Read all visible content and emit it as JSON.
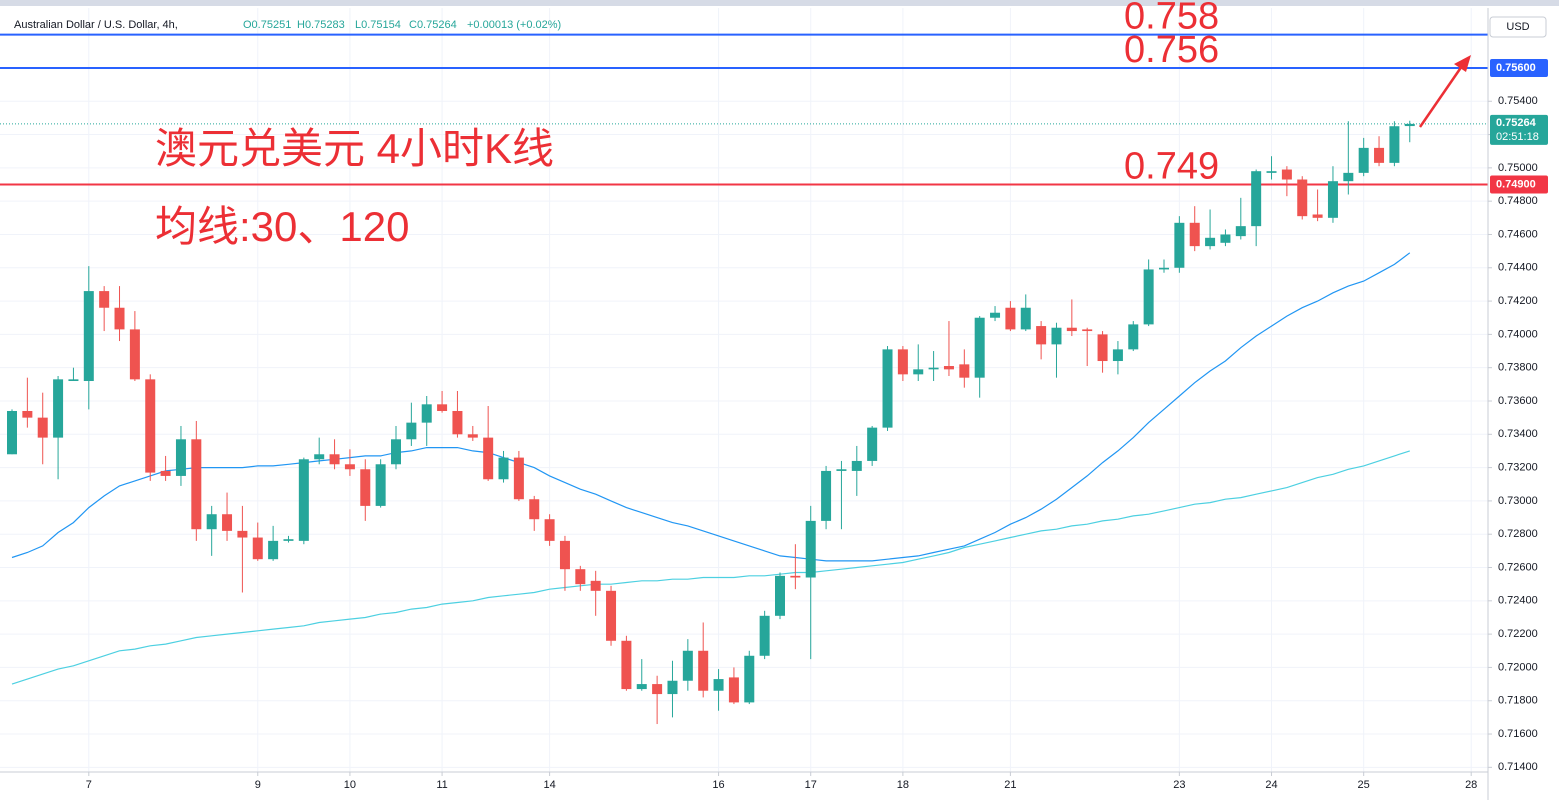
{
  "chart_data": {
    "type": "candlestick",
    "header": {
      "symbol": "Australian Dollar / U.S. Dollar, 4h,",
      "ohlc": [
        "O0.75251",
        "H0.75283",
        "L0.75154",
        "C0.75264",
        "+0.00013 (+0.02%)"
      ]
    },
    "title": "澳元兑美元 4小时K线",
    "subtitle": "均线:30、120",
    "currency": "USD",
    "categories": [
      null,
      null,
      null,
      null,
      null,
      "7",
      null,
      null,
      null,
      null,
      null,
      null,
      null,
      null,
      null,
      null,
      "9",
      null,
      null,
      null,
      null,
      null,
      "10",
      null,
      null,
      null,
      null,
      null,
      "11",
      null,
      null,
      null,
      null,
      null,
      null,
      "14",
      null,
      null,
      null,
      null,
      null,
      null,
      null,
      null,
      null,
      null,
      "16",
      null,
      null,
      null,
      null,
      null,
      "17",
      null,
      null,
      null,
      null,
      null,
      "18",
      null,
      null,
      null,
      null,
      null,
      null,
      "21",
      null,
      null,
      null,
      null,
      null,
      null,
      null,
      null,
      null,
      null,
      "23",
      null,
      null,
      null,
      null,
      null,
      "24",
      null,
      null,
      null,
      null,
      null,
      "25",
      null,
      null,
      null,
      null,
      null,
      null,
      "28"
    ],
    "open": [
      0.7328,
      0.7354,
      0.735,
      0.7338,
      0.7372,
      0.7372,
      0.7426,
      0.7416,
      0.7403,
      0.7373,
      0.7318,
      0.7315,
      0.7337,
      0.7283,
      0.7292,
      0.7282,
      0.7278,
      0.7265,
      0.7276,
      0.7276,
      0.7325,
      0.7328,
      0.7322,
      0.7319,
      0.7297,
      0.7322,
      0.7337,
      0.7347,
      0.7358,
      0.7354,
      0.734,
      0.7338,
      0.7313,
      0.7326,
      0.7301,
      0.7289,
      0.7276,
      0.7259,
      0.7252,
      0.7246,
      0.7216,
      0.7187,
      0.719,
      0.7184,
      0.7192,
      0.721,
      0.7186,
      0.7194,
      0.7179,
      0.7207,
      0.7231,
      0.7255,
      0.7254,
      0.7288,
      0.7318,
      0.7318,
      0.7324,
      0.7344,
      0.7391,
      0.7376,
      0.7379,
      0.7381,
      0.7382,
      0.7374,
      0.741,
      0.7416,
      0.7403,
      0.7405,
      0.7394,
      0.7404,
      0.7403,
      0.74,
      0.7384,
      0.7391,
      0.7406,
      0.7439,
      0.744,
      0.7467,
      0.7453,
      0.7455,
      0.7459,
      0.7465,
      0.7497,
      0.7499,
      0.7493,
      0.7472,
      0.747,
      0.7492,
      0.7497,
      0.7512,
      0.7503,
      0.75251,
      null,
      null,
      null,
      null
    ],
    "high": [
      0.7355,
      0.7374,
      0.7365,
      0.7375,
      0.738,
      0.7441,
      0.7429,
      0.7429,
      0.7414,
      0.7376,
      0.7327,
      0.7345,
      0.7348,
      0.7297,
      0.7305,
      0.7297,
      0.7287,
      0.7285,
      0.7279,
      0.7326,
      0.7338,
      0.7337,
      0.7331,
      0.7325,
      0.7325,
      0.7345,
      0.7359,
      0.7363,
      0.7366,
      0.7366,
      0.7345,
      0.7357,
      0.733,
      0.733,
      0.7303,
      0.7292,
      0.7279,
      0.7261,
      0.7258,
      0.7249,
      0.7219,
      0.7205,
      0.7195,
      0.7204,
      0.7217,
      0.7227,
      0.7199,
      0.72,
      0.721,
      0.7234,
      0.7257,
      0.7274,
      0.7297,
      0.7321,
      0.7324,
      0.7333,
      0.7345,
      0.7393,
      0.7393,
      0.7394,
      0.739,
      0.7408,
      0.7391,
      0.7411,
      0.7417,
      0.742,
      0.7424,
      0.7408,
      0.7407,
      0.7421,
      0.7404,
      0.7402,
      0.7396,
      0.7408,
      0.7445,
      0.7445,
      0.7471,
      0.7477,
      0.7475,
      0.7463,
      0.7482,
      0.7499,
      0.7507,
      0.7501,
      0.7495,
      0.7487,
      0.7501,
      0.7528,
      0.7518,
      0.7519,
      0.7528,
      0.75283,
      null,
      null,
      null,
      null
    ],
    "low": [
      0.7328,
      0.7344,
      0.7322,
      0.7313,
      0.7372,
      0.7355,
      0.7402,
      0.7396,
      0.7372,
      0.7312,
      0.7312,
      0.7309,
      0.7276,
      0.7267,
      0.7276,
      0.7245,
      0.7264,
      0.7264,
      0.7275,
      0.7274,
      0.7322,
      0.7319,
      0.7315,
      0.7288,
      0.7296,
      0.7319,
      0.7333,
      0.7333,
      0.7353,
      0.7338,
      0.7336,
      0.7312,
      0.7311,
      0.73,
      0.7282,
      0.7273,
      0.7246,
      0.7246,
      0.7231,
      0.7213,
      0.7186,
      0.7186,
      0.7166,
      0.717,
      0.7186,
      0.7182,
      0.7174,
      0.7178,
      0.7178,
      0.7205,
      0.7229,
      0.7247,
      0.7205,
      0.7283,
      0.7283,
      0.7303,
      0.7321,
      0.7342,
      0.7372,
      0.7372,
      0.7372,
      0.7375,
      0.7368,
      0.7362,
      0.7408,
      0.7402,
      0.7402,
      0.7385,
      0.7374,
      0.7399,
      0.7381,
      0.7377,
      0.7376,
      0.739,
      0.7405,
      0.7437,
      0.7437,
      0.745,
      0.7451,
      0.7453,
      0.7457,
      0.7453,
      0.7493,
      0.7483,
      0.7469,
      0.7468,
      0.7467,
      0.7484,
      0.7495,
      0.7501,
      0.7501,
      0.75154,
      null,
      null,
      null,
      null
    ],
    "close": [
      0.7354,
      0.735,
      0.7338,
      0.7373,
      0.7373,
      0.7426,
      0.7416,
      0.7403,
      0.7373,
      0.7317,
      0.7315,
      0.7337,
      0.7283,
      0.7292,
      0.7282,
      0.7278,
      0.7265,
      0.7276,
      0.7277,
      0.7325,
      0.7328,
      0.7322,
      0.7319,
      0.7297,
      0.7322,
      0.7337,
      0.7347,
      0.7358,
      0.7354,
      0.734,
      0.7338,
      0.7313,
      0.7326,
      0.7301,
      0.7289,
      0.7276,
      0.7259,
      0.725,
      0.7246,
      0.7216,
      0.7187,
      0.719,
      0.7184,
      0.7192,
      0.721,
      0.7186,
      0.7193,
      0.7179,
      0.7207,
      0.7231,
      0.7255,
      0.7254,
      0.7288,
      0.7318,
      0.7319,
      0.7324,
      0.7344,
      0.7391,
      0.7376,
      0.7379,
      0.738,
      0.7379,
      0.7374,
      0.741,
      0.7413,
      0.7403,
      0.7416,
      0.7394,
      0.7404,
      0.7402,
      0.7402,
      0.7384,
      0.7391,
      0.7406,
      0.7439,
      0.744,
      0.7467,
      0.7453,
      0.7458,
      0.746,
      0.7465,
      0.7498,
      0.7498,
      0.7493,
      0.7471,
      0.747,
      0.7492,
      0.7497,
      0.7512,
      0.7503,
      0.7525,
      0.75264,
      null,
      null,
      null,
      null
    ],
    "up_color": "#26a69a",
    "down_color": "#ef5350",
    "ma_lines": [
      {
        "color": "#2196f3",
        "values": [
          0.7266,
          0.7269,
          0.7273,
          0.7281,
          0.7287,
          0.7296,
          0.7303,
          0.7309,
          0.7312,
          0.7315,
          0.7318,
          0.7319,
          0.732,
          0.732,
          0.732,
          0.732,
          0.7321,
          0.7321,
          0.7322,
          0.7323,
          0.7324,
          0.7325,
          0.7326,
          0.7327,
          0.7327,
          0.7329,
          0.733,
          0.7332,
          0.7332,
          0.7332,
          0.733,
          0.7329,
          0.7326,
          0.7323,
          0.732,
          0.7315,
          0.7311,
          0.7307,
          0.7304,
          0.73,
          0.7296,
          0.7293,
          0.729,
          0.7287,
          0.7285,
          0.7282,
          0.7279,
          0.7276,
          0.7273,
          0.727,
          0.7267,
          0.7266,
          0.7265,
          0.7264,
          0.7264,
          0.7264,
          0.7264,
          0.7265,
          0.7266,
          0.7267,
          0.7269,
          0.7271,
          0.7273,
          0.7277,
          0.7281,
          0.7286,
          0.729,
          0.7295,
          0.7301,
          0.7308,
          0.7315,
          0.7323,
          0.733,
          0.7338,
          0.7347,
          0.7355,
          0.7363,
          0.7371,
          0.7378,
          0.7384,
          0.7392,
          0.7399,
          0.7405,
          0.7411,
          0.7416,
          0.742,
          0.7425,
          0.7429,
          0.7432,
          0.7437,
          0.7442,
          0.7449,
          null,
          null,
          null,
          null
        ]
      },
      {
        "color": "#4dd0e1",
        "values": [
          0.719,
          0.7193,
          0.7196,
          0.7199,
          0.7201,
          0.7204,
          0.7207,
          0.721,
          0.7211,
          0.7213,
          0.7214,
          0.7216,
          0.7218,
          0.7219,
          0.722,
          0.7221,
          0.7222,
          0.7223,
          0.7224,
          0.7225,
          0.7227,
          0.7228,
          0.7229,
          0.723,
          0.7232,
          0.7233,
          0.7235,
          0.7236,
          0.7238,
          0.7239,
          0.724,
          0.7242,
          0.7243,
          0.7244,
          0.7245,
          0.7247,
          0.7248,
          0.7249,
          0.725,
          0.725,
          0.7251,
          0.7252,
          0.7252,
          0.7253,
          0.7253,
          0.7254,
          0.7254,
          0.7254,
          0.7255,
          0.7255,
          0.7256,
          0.7257,
          0.7257,
          0.7258,
          0.7259,
          0.726,
          0.7261,
          0.7262,
          0.7263,
          0.7265,
          0.7267,
          0.7269,
          0.7272,
          0.7274,
          0.7276,
          0.7278,
          0.728,
          0.7282,
          0.7283,
          0.7285,
          0.7286,
          0.7288,
          0.7289,
          0.7291,
          0.7292,
          0.7294,
          0.7296,
          0.7298,
          0.7299,
          0.7301,
          0.7302,
          0.7304,
          0.7306,
          0.7308,
          0.7311,
          0.7314,
          0.7316,
          0.7319,
          0.7321,
          0.7324,
          0.7327,
          0.733,
          null,
          null,
          null,
          null
        ]
      }
    ],
    "levels": [
      {
        "value": 0.758,
        "label": "0.758",
        "color": "#2962ff"
      },
      {
        "value": 0.756,
        "label": "0.756",
        "color": "#2962ff",
        "tag": "0.75600"
      },
      {
        "value": 0.749,
        "label": "0.749",
        "color": "#f23645",
        "tag": "0.74900"
      }
    ],
    "last_price": {
      "value": 0.75264,
      "label": "0.75264",
      "countdown": "02:51:18",
      "color": "#26a69a"
    },
    "ylim": [
      0.7136,
      0.7596
    ],
    "yticks": [
      {
        "value": 0.714,
        "label": "0.71400"
      },
      {
        "value": 0.716,
        "label": "0.71600"
      },
      {
        "value": 0.718,
        "label": "0.71800"
      },
      {
        "value": 0.72,
        "label": "0.72000"
      },
      {
        "value": 0.722,
        "label": "0.72200"
      },
      {
        "value": 0.724,
        "label": "0.72400"
      },
      {
        "value": 0.726,
        "label": "0.72600"
      },
      {
        "value": 0.728,
        "label": "0.72800"
      },
      {
        "value": 0.73,
        "label": "0.73000"
      },
      {
        "value": 0.732,
        "label": "0.73200"
      },
      {
        "value": 0.734,
        "label": "0.73400"
      },
      {
        "value": 0.736,
        "label": "0.73600"
      },
      {
        "value": 0.738,
        "label": "0.73800"
      },
      {
        "value": 0.74,
        "label": "0.74000"
      },
      {
        "value": 0.742,
        "label": "0.74200"
      },
      {
        "value": 0.744,
        "label": "0.74400"
      },
      {
        "value": 0.746,
        "label": "0.74600"
      },
      {
        "value": 0.748,
        "label": "0.74800"
      },
      {
        "value": 0.75,
        "label": "0.75000"
      },
      {
        "value": 0.752,
        "label": "0.75200"
      },
      {
        "value": 0.754,
        "label": "0.75400"
      }
    ],
    "grid": true
  }
}
